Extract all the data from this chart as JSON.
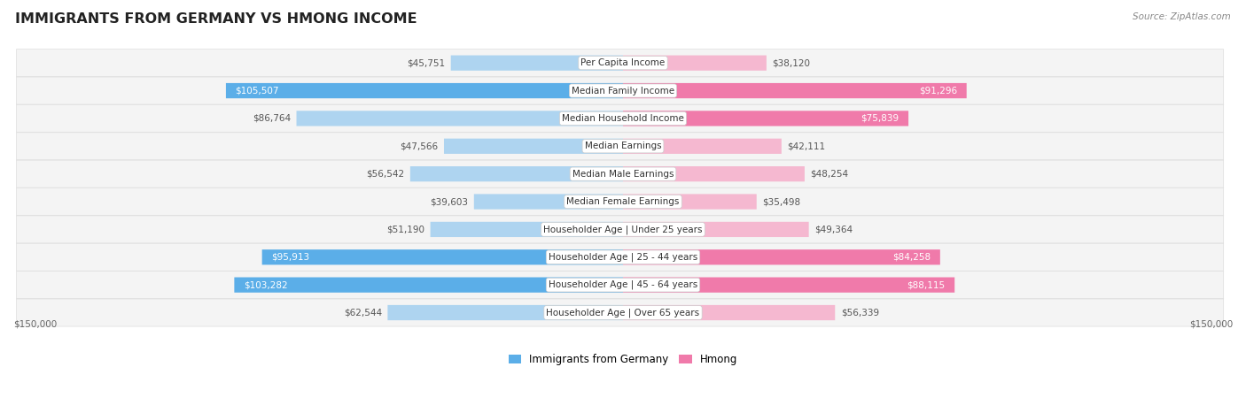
{
  "title": "IMMIGRANTS FROM GERMANY VS HMONG INCOME",
  "source": "Source: ZipAtlas.com",
  "categories": [
    "Per Capita Income",
    "Median Family Income",
    "Median Household Income",
    "Median Earnings",
    "Median Male Earnings",
    "Median Female Earnings",
    "Householder Age | Under 25 years",
    "Householder Age | 25 - 44 years",
    "Householder Age | 45 - 64 years",
    "Householder Age | Over 65 years"
  ],
  "germany_values": [
    45751,
    105507,
    86764,
    47566,
    56542,
    39603,
    51190,
    95913,
    103282,
    62544
  ],
  "hmong_values": [
    38120,
    91296,
    75839,
    42111,
    48254,
    35498,
    49364,
    84258,
    88115,
    56339
  ],
  "germany_labels": [
    "$45,751",
    "$105,507",
    "$86,764",
    "$47,566",
    "$56,542",
    "$39,603",
    "$51,190",
    "$95,913",
    "$103,282",
    "$62,544"
  ],
  "hmong_labels": [
    "$38,120",
    "$91,296",
    "$75,839",
    "$42,111",
    "$48,254",
    "$35,498",
    "$49,364",
    "$84,258",
    "$88,115",
    "$56,339"
  ],
  "germany_color_dark": "#5baee8",
  "germany_color_light": "#aed4f0",
  "hmong_color_dark": "#f07aaa",
  "hmong_color_light": "#f5b8d0",
  "max_value": 150000,
  "axis_label": "$150,000",
  "legend_germany": "Immigrants from Germany",
  "legend_hmong": "Hmong",
  "germany_dark_indices": [
    1,
    7,
    8
  ],
  "hmong_dark_indices": [
    1,
    2,
    7,
    8
  ],
  "title_fontsize": 11.5,
  "label_fontsize": 7.5,
  "category_fontsize": 7.5,
  "source_fontsize": 7.5
}
